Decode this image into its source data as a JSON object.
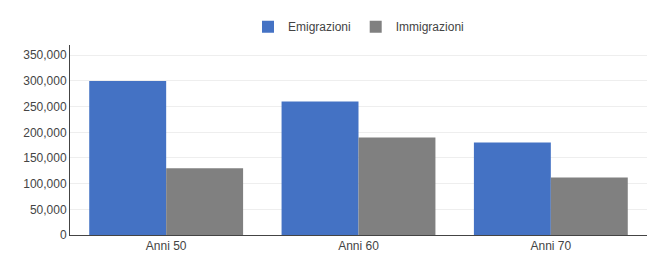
{
  "chart_data": {
    "type": "bar",
    "categories": [
      "Anni 50",
      "Anni 60",
      "Anni 70"
    ],
    "series": [
      {
        "name": "Emigrazioni",
        "color": "#4472C4",
        "values": [
          300000,
          260000,
          180000
        ]
      },
      {
        "name": "Immigrazioni",
        "color": "#808080",
        "values": [
          130000,
          190000,
          112000
        ]
      }
    ],
    "ylim": [
      0,
      370000
    ],
    "yticks": [
      0,
      {
        "value": 50000,
        "label": "50,000"
      },
      {
        "value": 100000,
        "label": "100,000"
      },
      {
        "value": 150000,
        "label": "150,000"
      },
      {
        "value": 200000,
        "label": "200,000"
      },
      {
        "value": 250000,
        "label": "250,000"
      },
      {
        "value": 300000,
        "label": "300,000"
      },
      {
        "value": 350000,
        "label": "350,000"
      }
    ],
    "grid": true,
    "legend": "top"
  }
}
